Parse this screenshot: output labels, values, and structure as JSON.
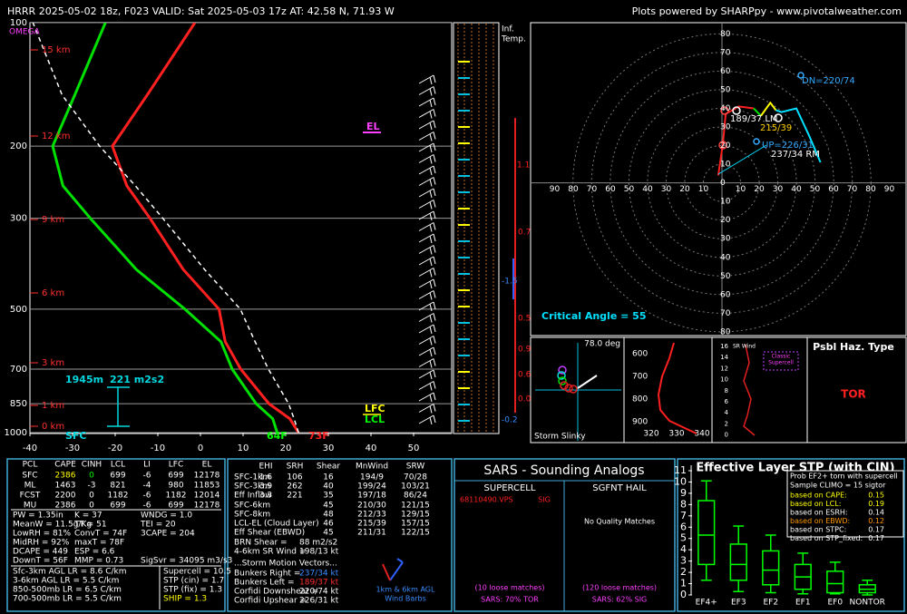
{
  "header": {
    "title": "HRRR 2025-05-02 18z, F023  VALID: Sat 2025-05-03 17z  AT: 42.58 N, 71.93 W",
    "credit": "Plots powered by SHARPpy - www.pivotalweather.com"
  },
  "chart_data": [
    {
      "type": "skewt",
      "log_scale": true,
      "ylim": [
        1000,
        100
      ],
      "yticks": [
        100,
        200,
        300,
        500,
        700,
        850,
        1000
      ],
      "xlim": [
        -40,
        50
      ],
      "xticks": [
        -40,
        -30,
        -20,
        -10,
        0,
        10,
        20,
        30,
        40,
        50
      ],
      "pressure": [
        1000,
        925,
        850,
        700,
        600,
        500,
        400,
        300,
        250,
        200,
        150,
        100
      ],
      "series": [
        {
          "name": "Temperature",
          "color": "#ff2020",
          "style": "solid",
          "values": [
            23,
            19,
            12,
            0.5,
            -7,
            -13,
            -27,
            -42,
            -52,
            -61,
            -60,
            -59
          ]
        },
        {
          "name": "Dewpoint",
          "color": "#00e000",
          "style": "solid",
          "values": [
            18,
            15,
            9,
            -1.5,
            -8,
            -21,
            -38,
            -56,
            -67,
            -75,
            -77,
            -80
          ]
        },
        {
          "name": "Parcel",
          "color": "#ffffff",
          "style": "dashed",
          "values": [
            23,
            20,
            16.6,
            7,
            0,
            -8,
            -22,
            -39,
            -50,
            -64,
            -80,
            -97
          ]
        }
      ],
      "height_labels": [
        "15 km",
        "12 km",
        "9 km",
        "6 km",
        "3 km",
        "1 km",
        "0 km"
      ],
      "annotations": {
        "omega": "OMEGA",
        "el": "EL",
        "lfc": "LFC",
        "lcl": "LCL",
        "td_sfc": "64F",
        "t_sfc": "73F",
        "inflow_top": "1945m",
        "inflow_srh": "221 m2s2",
        "sfc": "SFC"
      }
    },
    {
      "type": "hodograph",
      "xlim": [
        -100,
        100
      ],
      "ylim": [
        -82,
        86
      ],
      "xticks": [
        {
          "value": -90,
          "label": "90"
        },
        {
          "value": -80,
          "label": "80"
        },
        {
          "value": -70,
          "label": "70"
        },
        {
          "value": -60,
          "label": "60"
        },
        {
          "value": -50,
          "label": "50"
        },
        {
          "value": -40,
          "label": "40"
        },
        {
          "value": -30,
          "label": "30"
        },
        {
          "value": -20,
          "label": "20"
        },
        {
          "value": -10,
          "label": "10"
        },
        10,
        20,
        30,
        40,
        50,
        60,
        70,
        80,
        90
      ],
      "yticks": [
        0,
        10,
        20,
        30,
        40,
        50,
        60,
        70,
        80,
        {
          "value": -10,
          "label": "10"
        },
        {
          "value": -20,
          "label": "20"
        },
        {
          "value": -30,
          "label": "30"
        },
        {
          "value": -40,
          "label": "40"
        },
        {
          "value": -50,
          "label": "50"
        },
        {
          "value": -60,
          "label": "60"
        },
        {
          "value": -70,
          "label": "70"
        },
        {
          "value": -80,
          "label": "80"
        }
      ],
      "series": [
        {
          "color": "#ff2020",
          "x": [
            -2,
            0.5,
            2,
            9,
            17
          ],
          "values": [
            4,
            21,
            37,
            41,
            40
          ]
        },
        {
          "color": "#00e000",
          "x": [
            17,
            21
          ],
          "values": [
            40,
            36
          ]
        },
        {
          "color": "#ffff00",
          "x": [
            21,
            26,
            29
          ],
          "values": [
            36,
            43,
            39
          ]
        },
        {
          "color": "#00e0ff",
          "x": [
            29,
            32,
            40,
            47,
            53
          ],
          "values": [
            39,
            38,
            40,
            25,
            11
          ]
        }
      ],
      "labels": {
        "dn": "DN=220/74",
        "lm": "189/37 LM",
        "mean": "215/39",
        "up": "UP=226/31",
        "rm": "237/34 RM",
        "critical": "Critical Angle = 55"
      }
    },
    {
      "type": "box",
      "title": "Effective Layer STP (with CIN)",
      "categories": [
        "EF4+",
        "EF3",
        "EF2",
        "EF1",
        "EF0",
        "NONTOR"
      ],
      "values": [
        [
          1.3,
          2.7,
          5.3,
          8.35,
          10.1
        ],
        [
          0.3,
          1.3,
          2.7,
          4.5,
          6.1
        ],
        [
          0.2,
          0.9,
          2.2,
          3.9,
          5.3
        ],
        [
          0.1,
          0.5,
          1.6,
          2.7,
          3.7
        ],
        [
          0.1,
          0.2,
          1.0,
          2.1,
          2.9
        ],
        [
          0,
          0.2,
          0.5,
          0.9,
          1.3
        ]
      ],
      "color": "#00ff00",
      "ylim": [
        0,
        11
      ],
      "yticks": [
        0,
        1,
        2,
        3,
        4,
        5,
        6,
        7,
        8,
        9,
        10,
        11
      ],
      "legend": {
        "title": "Prob EF2+ torn with supercell",
        "sample": "Sample CLIMO = 15 sigtor",
        "rows": [
          [
            "based on CAPE:",
            "0.15"
          ],
          [
            "based on LCL:",
            "0.19"
          ],
          [
            "based on ESRH:",
            "0.14"
          ],
          [
            "based on EBWD:",
            "0.12"
          ],
          [
            "based on STPC:",
            "0.17"
          ],
          [
            "based on STP_fixed:",
            "0.17"
          ]
        ]
      }
    }
  ],
  "inferred_temp": {
    "title": [
      "Inf.",
      "Temp."
    ],
    "labels": [
      "1.1",
      "0.7",
      "-1.5",
      "0.5",
      "0.9",
      "0.6",
      "0.0",
      "-0.2"
    ]
  },
  "slinky": {
    "angle": "78.0 deg",
    "title": "Storm Slinky"
  },
  "theta_e": {
    "yticks": [
      "600",
      "700",
      "800",
      "900"
    ],
    "xticks": [
      "320",
      "330",
      "340"
    ]
  },
  "sr_wind": {
    "title": "SR Wind",
    "ticks": [
      "16",
      "14",
      "12",
      "10",
      "8",
      "6",
      "4",
      "2",
      "0"
    ],
    "note": [
      "Classic",
      "Supercell"
    ]
  },
  "hazard": {
    "title": "Psbl Haz. Type",
    "type": "TOR"
  },
  "params": {
    "header": [
      "PCL",
      "CAPE",
      "CINH",
      "LCL",
      "LI",
      "LFC",
      "EL"
    ],
    "rows": [
      [
        "SFC",
        "2386",
        "0",
        "699",
        "-6",
        "699",
        "12178"
      ],
      [
        "ML",
        "1463",
        "-3",
        "821",
        "-4",
        "980",
        "11853"
      ],
      [
        "FCST",
        "2200",
        "0",
        "1182",
        "-6",
        "1182",
        "12014"
      ],
      [
        "MU",
        "2386",
        "0",
        "699",
        "-6",
        "699",
        "12178"
      ]
    ],
    "indices": [
      [
        "PW = 1.35in",
        "K = 37",
        "WNDG = 1.0"
      ],
      [
        "MeanW = 11.5g/Kg",
        "TT = 51",
        "TEI = 20"
      ],
      [
        "LowRH = 81%",
        "ConvT = 74F",
        "3CAPE = 204"
      ],
      [
        "MidRH = 92%",
        "maxT = 78F"
      ],
      [
        "DCAPE = 449",
        "ESP = 6.6"
      ],
      [
        "DownT = 56F",
        "MMP = 0.73",
        "SigSvr = 34095 m3/s3"
      ]
    ],
    "lapse": [
      [
        "Sfc-3km AGL LR = 8.6 C/km",
        "Supercell = 10.5"
      ],
      [
        "3-6km AGL LR = 5.5 C/km",
        "STP (cin) = 1.7"
      ],
      [
        "850-500mb LR = 6.5 C/km",
        "STP (fix) = 1.3"
      ],
      [
        "700-500mb LR = 5.5 C/km",
        "SHIP = 1.3"
      ]
    ]
  },
  "kinematics": {
    "header": [
      "EHI",
      "SRH",
      "Shear",
      "MnWind",
      "SRW"
    ],
    "rows": [
      [
        "SFC-1km",
        "1.6",
        "106",
        "16",
        "194/9",
        "70/28"
      ],
      [
        "SFC-3km",
        "3.9",
        "262",
        "40",
        "199/24",
        "103/21"
      ],
      [
        "Eff Inflow",
        "3.3",
        "221",
        "35",
        "197/18",
        "86/24"
      ]
    ],
    "shear_rows": [
      [
        "SFC-6km",
        "45",
        "210/30",
        "121/15"
      ],
      [
        "SFC-8km",
        "48",
        "212/33",
        "129/15"
      ],
      [
        "LCL-EL (Cloud Layer)",
        "46",
        "215/39",
        "157/15"
      ],
      [
        "Eff Shear (EBWD)",
        "45",
        "211/31",
        "122/15"
      ]
    ],
    "lines": [
      [
        "BRN Shear =",
        "88 m2/s2"
      ],
      [
        "4-6km SR Wind =",
        "198/13 kt"
      ]
    ],
    "motion_title": "...Storm Motion Vectors...",
    "motion": [
      [
        "Bunkers Right =",
        "237/34 kt"
      ],
      [
        "Bunkers Left =",
        "189/37 kt"
      ],
      [
        "Corfidi Downshear =",
        "220/74 kt"
      ],
      [
        "Corfidi Upshear =",
        "226/31 kt"
      ]
    ],
    "barb_caption": [
      "1km & 6km AGL",
      "Wind Barbs"
    ]
  },
  "sars": {
    "title": "SARS - Sounding Analogs",
    "supercell": "SUPERCELL",
    "hail": "SGFNT HAIL",
    "match": "68110490.VPS",
    "match_type": "SIG",
    "hail_match": "No Quality Matches",
    "supercell_loose": "(10 loose matches)",
    "hail_loose": "(120 loose matches)",
    "supercell_result": "SARS: 70% TOR",
    "hail_result": "SARS: 62% SIG"
  }
}
